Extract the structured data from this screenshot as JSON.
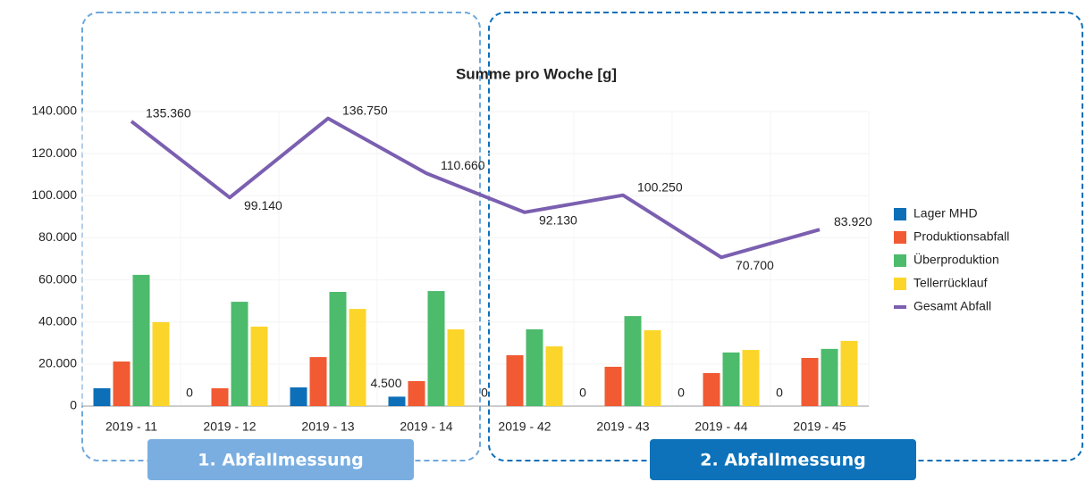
{
  "chart_data": {
    "type": "bar_line",
    "title": "Summe pro Woche [g]",
    "categories": [
      "2019 - 11",
      "2019 - 12",
      "2019 - 13",
      "2019 - 14",
      "2019 - 42",
      "2019 - 43",
      "2019 - 44",
      "2019 - 45"
    ],
    "series": [
      {
        "name": "Lager MHD",
        "type": "bar",
        "color": "#0d6fb8",
        "values": [
          8500,
          0,
          8900,
          4500,
          0,
          0,
          0,
          0
        ],
        "value_labels": [
          null,
          "0",
          null,
          "4.500",
          "0",
          "0",
          "0",
          "0"
        ]
      },
      {
        "name": "Produktionsabfall",
        "type": "bar",
        "color": "#f15a32",
        "values": [
          21200,
          8500,
          23300,
          11900,
          24200,
          18700,
          15700,
          22900
        ]
      },
      {
        "name": "Überproduktion",
        "type": "bar",
        "color": "#4cbb6c",
        "values": [
          62400,
          49600,
          54300,
          54700,
          36500,
          42800,
          25500,
          27200
        ]
      },
      {
        "name": "Tellerrücklauf",
        "type": "bar",
        "color": "#fcd52a",
        "values": [
          39900,
          37800,
          46200,
          36500,
          28400,
          36100,
          26700,
          31000
        ]
      },
      {
        "name": "Gesamt Abfall",
        "type": "line",
        "color": "#7b5fb0",
        "values": [
          135360,
          99140,
          136750,
          110660,
          92130,
          100250,
          70700,
          83920
        ],
        "value_labels": [
          "135.360",
          "99.140",
          "136.750",
          "110.660",
          "92.130",
          "100.250",
          "70.700",
          "83.920"
        ]
      }
    ],
    "ylim": [
      0,
      140000
    ],
    "yticks": [
      0,
      {
        "value": 20000,
        "label": "20.000"
      },
      {
        "value": 40000,
        "label": "40.000"
      },
      {
        "value": 60000,
        "label": "60.000"
      },
      {
        "value": 80000,
        "label": "80.000"
      },
      {
        "value": 100000,
        "label": "100.000"
      },
      {
        "value": 120000,
        "label": "120.000"
      },
      {
        "value": 140000,
        "label": "140.000"
      }
    ],
    "grid": true,
    "legend": "right",
    "annotations": [
      "1. Abfallmessung",
      "2. Abfallmessung"
    ]
  }
}
